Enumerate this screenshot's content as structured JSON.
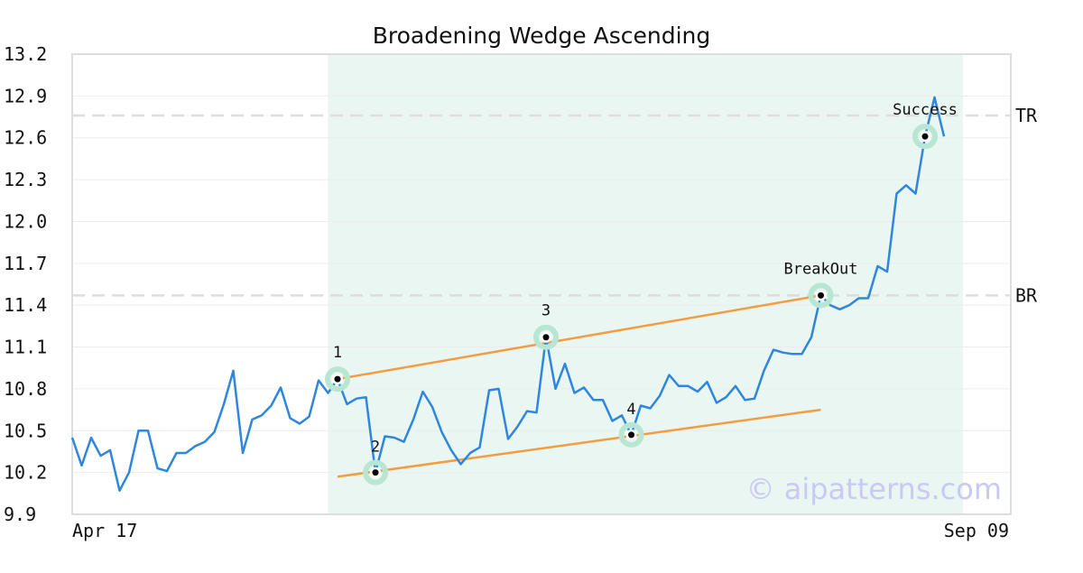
{
  "chart_data": {
    "type": "line",
    "title": "Broadening Wedge Ascending",
    "xlabel": "",
    "ylabel": "",
    "x_ticks": [
      "Apr 17",
      "Sep 09"
    ],
    "y_ticks": [
      "9.9",
      "10.2",
      "10.5",
      "10.8",
      "11.1",
      "11.4",
      "11.7",
      "12.0",
      "12.3",
      "12.6",
      "12.9",
      "13.2"
    ],
    "ylim": [
      9.9,
      13.2
    ],
    "grid": true,
    "series_color": "#2e86de",
    "trendline_color": "#f39c40",
    "highlight_color": "#eaf6f1",
    "marker_ring_color": "#b7e6d2",
    "level_line_color": "#dddddd",
    "pattern_range": [
      27,
      94
    ],
    "series": [
      {
        "values": [
          10.45,
          10.25,
          10.45,
          10.32,
          10.36,
          10.07,
          10.2,
          10.5,
          10.5,
          10.23,
          10.21,
          10.34,
          10.34,
          10.39,
          10.42,
          10.49,
          10.69,
          10.93,
          10.34,
          10.58,
          10.61,
          10.68,
          10.81,
          10.59,
          10.55,
          10.6,
          10.86,
          10.77,
          10.87,
          10.69,
          10.73,
          10.74,
          10.2,
          10.46,
          10.45,
          10.42,
          10.58,
          10.78,
          10.67,
          10.49,
          10.36,
          10.26,
          10.34,
          10.38,
          10.79,
          10.8,
          10.44,
          10.53,
          10.64,
          10.63,
          11.17,
          10.8,
          10.98,
          10.77,
          10.81,
          10.72,
          10.72,
          10.57,
          10.61,
          10.47,
          10.68,
          10.66,
          10.75,
          10.9,
          10.82,
          10.82,
          10.78,
          10.85,
          10.7,
          10.74,
          10.82,
          10.72,
          10.73,
          10.93,
          11.08,
          11.06,
          11.05,
          11.05,
          11.17,
          11.47,
          11.4,
          11.37,
          11.4,
          11.45,
          11.45,
          11.68,
          11.64,
          12.2,
          12.26,
          12.2,
          12.61,
          12.89,
          12.61
        ]
      }
    ],
    "trendlines": [
      {
        "x": [
          28,
          79
        ],
        "y": [
          10.87,
          11.47
        ]
      },
      {
        "x": [
          28,
          79
        ],
        "y": [
          10.17,
          10.65
        ]
      }
    ],
    "points": [
      {
        "label": "1",
        "x": 28,
        "y": 10.87
      },
      {
        "label": "2",
        "x": 32,
        "y": 10.2
      },
      {
        "label": "3",
        "x": 50,
        "y": 11.17
      },
      {
        "label": "4",
        "x": 59,
        "y": 10.47
      },
      {
        "label": "BreakOut",
        "x": 79,
        "y": 11.47
      },
      {
        "label": "Success",
        "x": 90,
        "y": 12.61
      }
    ],
    "levels": [
      {
        "label": "TR",
        "value": 12.76
      },
      {
        "label": "BR",
        "value": 11.47
      }
    ],
    "watermark": "© aipatterns.com"
  }
}
